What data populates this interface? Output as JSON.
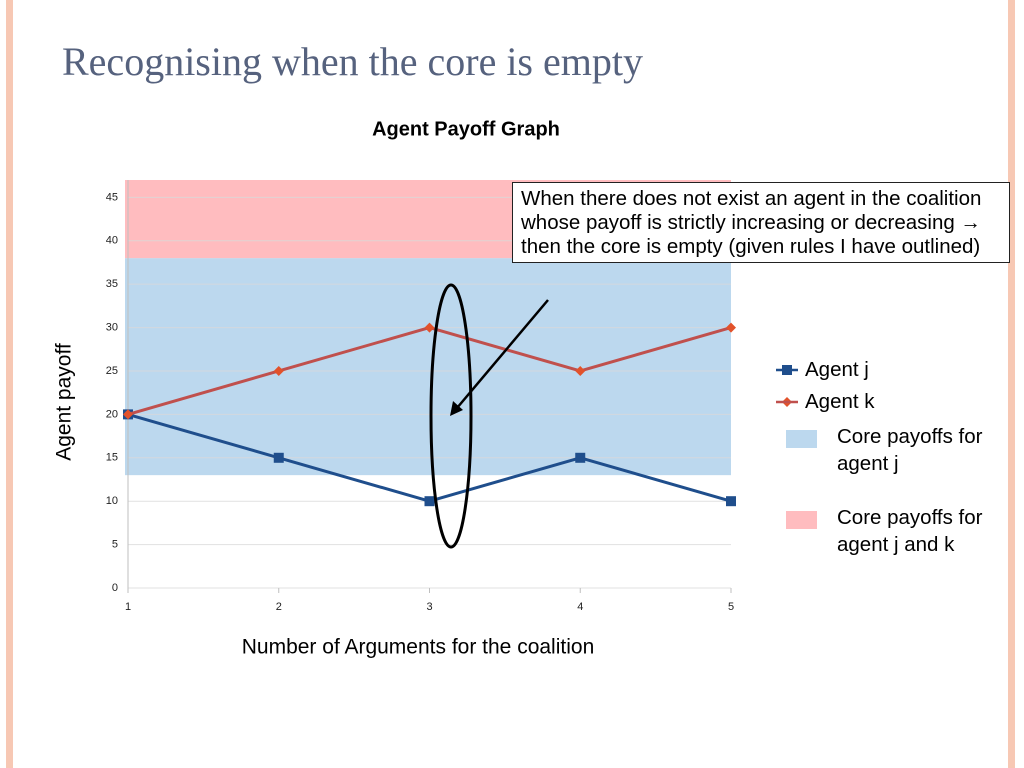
{
  "slide_title": "Recognising when the core is empty",
  "chart_data": {
    "type": "line",
    "title": "Agent Payoff Graph",
    "x_label": "Number of Arguments for the coalition",
    "y_label": "Agent payoff",
    "x": [
      1,
      2,
      3,
      4,
      5
    ],
    "xlim": [
      1,
      5
    ],
    "xticks": [
      1,
      2,
      3,
      4,
      5
    ],
    "ylim": [
      0,
      47
    ],
    "yticks": [
      0,
      5,
      10,
      15,
      20,
      25,
      30,
      35,
      40,
      45
    ],
    "grid": true,
    "series": [
      {
        "name": "Agent j",
        "color": "#1f4e8c",
        "marker": "square",
        "values": [
          20,
          15,
          10,
          15,
          10
        ]
      },
      {
        "name": "Agent k",
        "color": "#c0504d",
        "marker": "diamond",
        "values": [
          20,
          25,
          30,
          25,
          30
        ]
      }
    ],
    "bands": [
      {
        "name": "Core payoffs for agent j",
        "color": "#bcd8ee",
        "range": [
          13,
          38
        ]
      },
      {
        "name": "Core payoffs for agent j and k",
        "color": "#ffbcbf",
        "range": [
          38,
          47
        ]
      }
    ],
    "annotation": "When there does not exist an agent in the coalition whose payoff is strictly increasing or decreasing → then the core is empty (given rules I have outlined)"
  }
}
